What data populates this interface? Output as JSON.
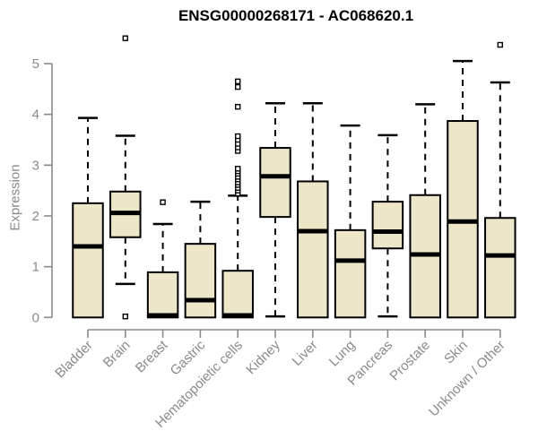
{
  "title": "ENSG00000268171 - AC068620.1",
  "colors": {
    "background": "#ffffff",
    "box_fill": "#EDE6C8",
    "box_border": "#000000",
    "median": "#000000",
    "whisker": "#000000",
    "axis": "#8a8a8a",
    "tick_label": "#8a8a8a",
    "title": "#000000"
  },
  "chart_data": {
    "type": "boxplot",
    "title": "ENSG00000268171 - AC068620.1",
    "xlabel": "",
    "ylabel": "Expression",
    "ylim": [
      0,
      5
    ],
    "yticks": [
      0,
      1,
      2,
      3,
      4,
      5
    ],
    "grid": false,
    "legend": false,
    "categories": [
      "Bladder",
      "Brain",
      "Breast",
      "Gastric",
      "Hematopoietic cells",
      "Kidney",
      "Liver",
      "Lung",
      "Pancreas",
      "Prostate",
      "Skin",
      "Unknown / Other"
    ],
    "series": [
      {
        "name": "Bladder",
        "low": 0,
        "q1": 0,
        "median": 1.4,
        "q3": 2.25,
        "high": 3.93,
        "outliers": []
      },
      {
        "name": "Brain",
        "low": 0.66,
        "q1": 1.58,
        "median": 2.06,
        "q3": 2.48,
        "high": 3.58,
        "outliers": [
          5.5,
          0.02
        ]
      },
      {
        "name": "Breast",
        "low": 0,
        "q1": 0,
        "median": 0.04,
        "q3": 0.89,
        "high": 1.84,
        "outliers": [
          2.27
        ]
      },
      {
        "name": "Gastric",
        "low": 0,
        "q1": 0,
        "median": 0.34,
        "q3": 1.45,
        "high": 2.28,
        "outliers": []
      },
      {
        "name": "Hematopoietic cells",
        "low": 0,
        "q1": 0,
        "median": 0.04,
        "q3": 0.92,
        "high": 2.4,
        "outliers": [
          2.44,
          2.5,
          2.55,
          2.61,
          2.66,
          2.72,
          2.77,
          2.83,
          2.88,
          2.93,
          3.28,
          3.35,
          3.42,
          3.5,
          3.57,
          4.15,
          4.54,
          4.65
        ]
      },
      {
        "name": "Kidney",
        "low": 0.02,
        "q1": 1.98,
        "median": 2.78,
        "q3": 3.34,
        "high": 4.22,
        "outliers": []
      },
      {
        "name": "Liver",
        "low": 0,
        "q1": 0,
        "median": 1.7,
        "q3": 2.68,
        "high": 4.22,
        "outliers": []
      },
      {
        "name": "Lung",
        "low": 0,
        "q1": 0,
        "median": 1.12,
        "q3": 1.72,
        "high": 3.78,
        "outliers": []
      },
      {
        "name": "Pancreas",
        "low": 0.02,
        "q1": 1.36,
        "median": 1.69,
        "q3": 2.28,
        "high": 3.59,
        "outliers": []
      },
      {
        "name": "Prostate",
        "low": 0,
        "q1": 0,
        "median": 1.24,
        "q3": 2.41,
        "high": 4.2,
        "outliers": []
      },
      {
        "name": "Skin",
        "low": 0,
        "q1": 0,
        "median": 1.89,
        "q3": 3.87,
        "high": 5.05,
        "outliers": []
      },
      {
        "name": "Unknown / Other",
        "low": 0,
        "q1": 0,
        "median": 1.22,
        "q3": 1.96,
        "high": 4.63,
        "outliers": [
          5.37
        ]
      }
    ]
  }
}
